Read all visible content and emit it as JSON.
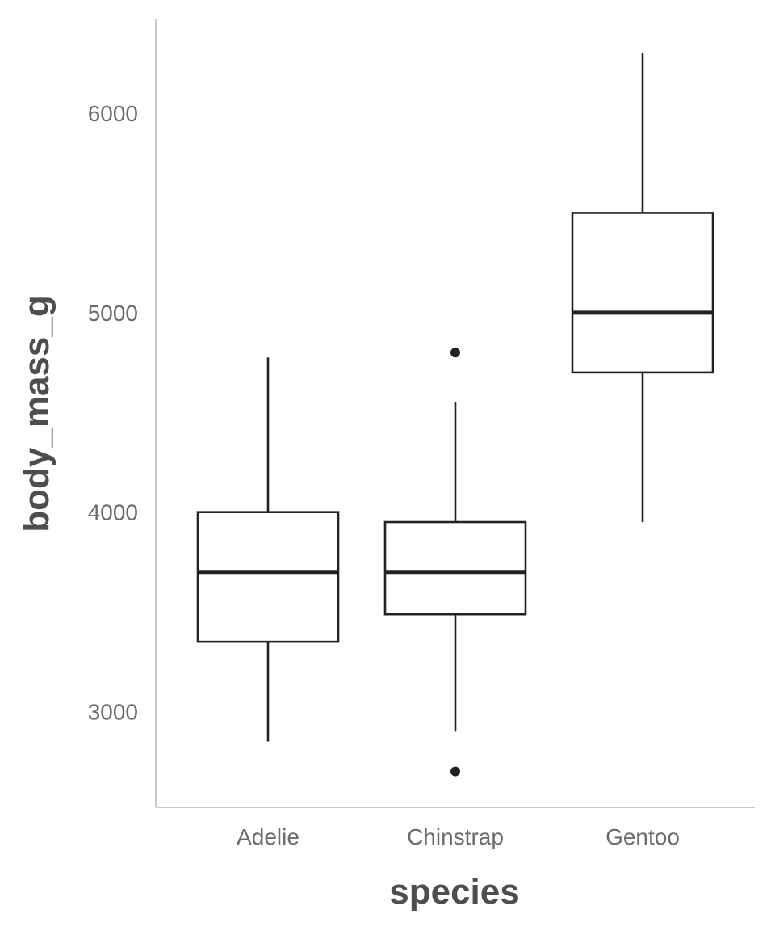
{
  "chart_data": {
    "type": "boxplot",
    "xlabel": "species",
    "ylabel": "body_mass_g",
    "categories": [
      "Adelie",
      "Chinstrap",
      "Gentoo"
    ],
    "ylim": [
      2520,
      6470
    ],
    "yticks": [
      3000,
      4000,
      5000,
      6000
    ],
    "grid": false,
    "boxes": [
      {
        "category": "Adelie",
        "whisker_low": 2850,
        "q1": 3350,
        "median": 3700,
        "q3": 4000,
        "whisker_high": 4775,
        "outliers": []
      },
      {
        "category": "Chinstrap",
        "whisker_low": 2900,
        "q1": 3487.5,
        "median": 3700,
        "q3": 3950,
        "whisker_high": 4550,
        "outliers": [
          2700,
          4800
        ]
      },
      {
        "category": "Gentoo",
        "whisker_low": 3950,
        "q1": 4700,
        "median": 5000,
        "q3": 5500,
        "whisker_high": 6300,
        "outliers": []
      }
    ],
    "colors": {
      "box_stroke": "#222222",
      "box_fill": "#ffffff",
      "axis": "#c8c8c8",
      "tick_text": "#6b6b6b",
      "title_text": "#4d4d4d"
    }
  }
}
